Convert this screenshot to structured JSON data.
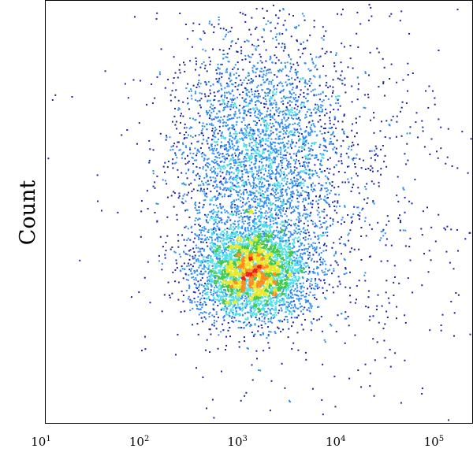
{
  "chart_data": {
    "type": "scatter",
    "title": "",
    "xlabel": "",
    "ylabel": "Count",
    "xscale": "log",
    "xlim": [
      10,
      220000
    ],
    "ylim": [
      0,
      1
    ],
    "grid": false,
    "legend": "none",
    "x_ticks": [
      {
        "base": "10",
        "exp": "1",
        "value": 10
      },
      {
        "base": "10",
        "exp": "2",
        "value": 100
      },
      {
        "base": "10",
        "exp": "3",
        "value": 1000
      },
      {
        "base": "10",
        "exp": "4",
        "value": 10000
      },
      {
        "base": "10",
        "exp": "5",
        "value": 100000
      }
    ],
    "density_colors": [
      "#1a22a8",
      "#2f8ef0",
      "#4fe0e6",
      "#41c94a",
      "#e8e82a",
      "#ff8a1e",
      "#e8221a"
    ],
    "populations": [
      {
        "center_x_log10": 3.1,
        "center_y": 0.36,
        "spread_x_log10": 0.28,
        "spread_y": 0.055,
        "density": "high"
      },
      {
        "center_x_log10": 3.15,
        "center_y": 0.62,
        "spread_x_log10": 0.42,
        "spread_y": 0.14,
        "density": "medium"
      },
      {
        "center_x_log10": 3.6,
        "center_y": 0.55,
        "spread_x_log10": 0.85,
        "spread_y": 0.25,
        "density": "low"
      }
    ]
  }
}
